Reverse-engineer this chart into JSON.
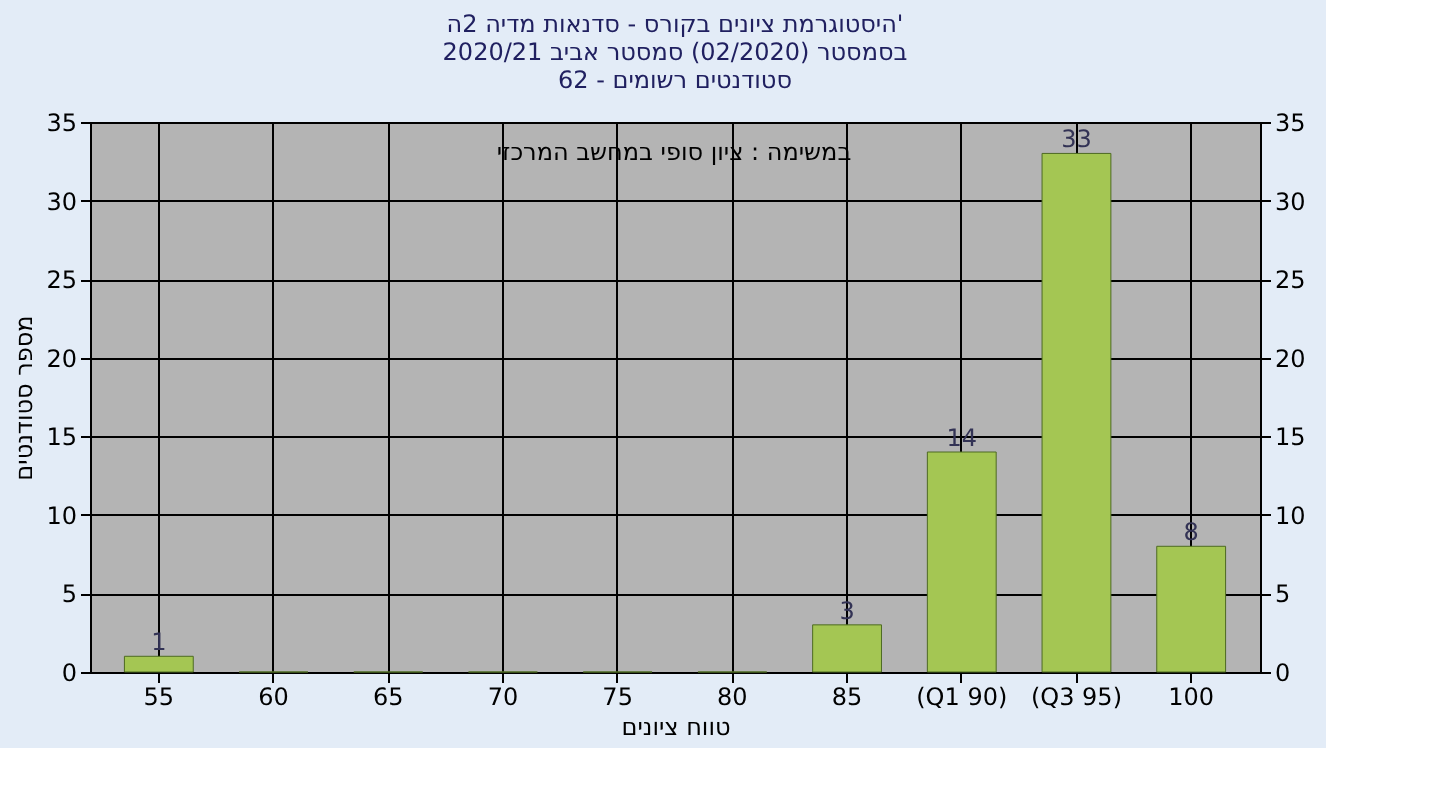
{
  "chart_data": {
    "type": "bar",
    "title": [
      "היסטוגרמת ציונים בקורס - סדנאות מדיה 2ה'",
      "בסמסטר (02/2020) סמסטר אביב 2020/21",
      "סטודנטים רשומים - 62"
    ],
    "annotations": [
      "במשימה : ציון סופי במחשב המרכזי"
    ],
    "xlabel": "טווח ציונים",
    "ylabel": "מספר סטודנטים",
    "categories": [
      "55",
      "60",
      "65",
      "70",
      "75",
      "80",
      "85",
      "(Q1 90)",
      "(Q3 95)",
      "100"
    ],
    "series": [
      {
        "color": "#a4c653",
        "values": [
          1,
          0,
          0,
          0,
          0,
          0,
          3,
          14,
          33,
          8
        ],
        "value_labels": [
          "1",
          null,
          null,
          null,
          null,
          null,
          "3",
          "14",
          "33",
          "8"
        ]
      }
    ],
    "ylim": [
      0,
      35
    ],
    "yticks": [
      0,
      5,
      10,
      15,
      20,
      25,
      30,
      35
    ],
    "y2lim": [
      0,
      35
    ],
    "y2ticks": [
      0,
      5,
      10,
      15,
      20,
      25,
      30,
      35
    ],
    "grid": true
  }
}
